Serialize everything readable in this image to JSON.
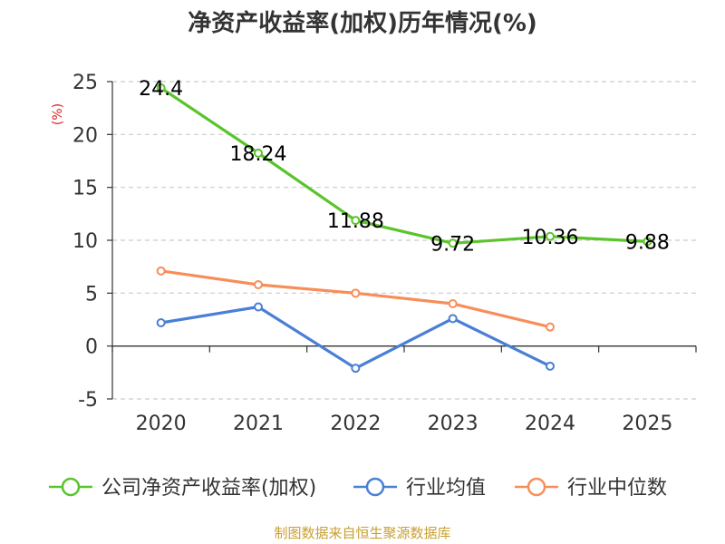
{
  "chart_data": {
    "type": "line",
    "title": "净资产收益率(加权)历年情况(%)",
    "ylabel": "(%)",
    "xlabel": "",
    "categories": [
      "2020",
      "2021",
      "2022",
      "2023",
      "2024",
      "2025"
    ],
    "ylim": [
      -5,
      25
    ],
    "yticks": [
      25,
      20,
      15,
      10,
      5,
      0,
      -5
    ],
    "grid": true,
    "legend_position": "bottom",
    "series": [
      {
        "name": "公司净资产收益率(加权)",
        "color": "#5ac42b",
        "values": [
          24.4,
          18.24,
          11.88,
          9.72,
          10.36,
          9.88
        ],
        "labels": [
          "24.4",
          "18.24",
          "11.88",
          "9.72",
          "10.36",
          "9.88"
        ]
      },
      {
        "name": "行业均值",
        "color": "#4a7fd6",
        "values": [
          2.2,
          3.7,
          -2.1,
          2.6,
          -1.9,
          null
        ]
      },
      {
        "name": "行业中位数",
        "color": "#f78e5a",
        "values": [
          7.1,
          5.8,
          5.0,
          4.0,
          1.8,
          null
        ]
      }
    ],
    "source": "制图数据来自恒生聚源数据库"
  }
}
